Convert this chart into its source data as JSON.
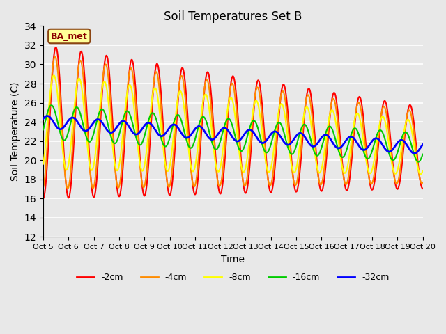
{
  "title": "Soil Temperatures Set B",
  "xlabel": "Time",
  "ylabel": "Soil Temperature (C)",
  "ylim": [
    12,
    34
  ],
  "yticks": [
    12,
    14,
    16,
    18,
    20,
    22,
    24,
    26,
    28,
    30,
    32,
    34
  ],
  "x_labels": [
    "Oct 5",
    "Oct 6",
    "Oct 7",
    "Oct 8",
    "Oct 9",
    "Oct 10",
    "Oct 11",
    "Oct 12",
    "Oct 13",
    "Oct 14",
    "Oct 15",
    "Oct 16",
    "Oct 17",
    "Oct 18",
    "Oct 19",
    "Oct 20"
  ],
  "colors": {
    "-2cm": "#FF0000",
    "-4cm": "#FF8C00",
    "-8cm": "#FFFF00",
    "-16cm": "#00CC00",
    "-32cm": "#0000FF"
  },
  "background_color": "#E8E8E8",
  "annotation_text": "BA_met",
  "annotation_bg": "#FFFF99",
  "annotation_border": "#8B4513"
}
